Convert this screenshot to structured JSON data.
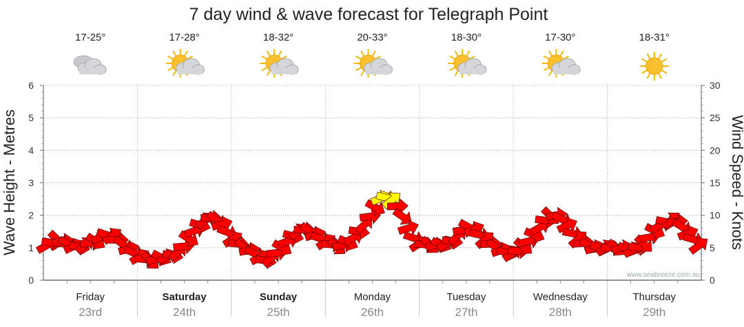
{
  "chart_data": {
    "type": "line",
    "title": "7 day wind & wave forecast for Telegraph Point",
    "ylabel_left": "Wave Height - Metres",
    "ylabel_right": "Wind Speed - Knots",
    "ylim_left": [
      0,
      6
    ],
    "ylim_right": [
      0,
      30
    ],
    "yticks_left": [
      "0",
      "1",
      "2",
      "3",
      "4",
      "5",
      "6"
    ],
    "yticks_right": [
      "0",
      "5",
      "10",
      "15",
      "20",
      "25",
      "30"
    ],
    "grid": true,
    "watermark": "www.seabreeze.com.au",
    "days": [
      {
        "name": "Friday",
        "date": "23rd",
        "temp": "17-25°",
        "icon": "cloudy-icon",
        "bold": false
      },
      {
        "name": "Saturday",
        "date": "24th",
        "temp": "17-28°",
        "icon": "partly-cloudy-icon",
        "bold": true
      },
      {
        "name": "Sunday",
        "date": "25th",
        "temp": "18-32°",
        "icon": "partly-cloudy-icon",
        "bold": true
      },
      {
        "name": "Monday",
        "date": "26th",
        "temp": "20-33°",
        "icon": "partly-cloudy-icon",
        "bold": false
      },
      {
        "name": "Tuesday",
        "date": "27th",
        "temp": "18-30°",
        "icon": "partly-cloudy-icon",
        "bold": false
      },
      {
        "name": "Wednesday",
        "date": "28th",
        "temp": "17-30°",
        "icon": "partly-cloudy-icon",
        "bold": false
      },
      {
        "name": "Thursday",
        "date": "29th",
        "temp": "18-31°",
        "icon": "sunny-icon",
        "bold": false
      }
    ],
    "series": [
      {
        "unit": "knots",
        "color_normal": "#ff0000",
        "color_strong": "#ffff00",
        "values": [
          5.3,
          5.8,
          6.3,
          6.0,
          5.6,
          5.2,
          5.1,
          5.4,
          5.7,
          6.0,
          6.6,
          7.0,
          6.8,
          6.2,
          5.5,
          4.8,
          4.2,
          3.6,
          3.2,
          3.0,
          3.2,
          3.5,
          3.6,
          3.8,
          4.3,
          5.2,
          6.4,
          7.6,
          8.5,
          9.2,
          9.6,
          9.3,
          8.6,
          7.4,
          6.3,
          5.6,
          5.1,
          4.6,
          4.1,
          3.5,
          3.0,
          3.4,
          4.2,
          5.0,
          6.0,
          6.8,
          7.5,
          7.8,
          7.6,
          7.0,
          6.4,
          5.9,
          5.5,
          5.2,
          5.4,
          5.8,
          6.5,
          7.5,
          8.5,
          9.8,
          11.2,
          12.6,
          12.7,
          12.3,
          11.4,
          9.8,
          8.0,
          6.5,
          5.6,
          5.5,
          5.4,
          5.4,
          5.5,
          5.6,
          6.0,
          6.8,
          7.7,
          8.2,
          7.8,
          7.0,
          6.2,
          5.6,
          5.1,
          4.6,
          4.2,
          4.1,
          4.5,
          5.2,
          6.0,
          7.0,
          8.1,
          9.2,
          9.9,
          10.0,
          9.4,
          8.4,
          7.2,
          6.3,
          5.7,
          5.3,
          5.0,
          5.0,
          5.0,
          5.0,
          5.0,
          5.0,
          4.8,
          4.7,
          5.0,
          5.6,
          6.6,
          7.6,
          8.4,
          9.0,
          9.2,
          9.0,
          8.2,
          7.2,
          6.3,
          5.3
        ]
      }
    ]
  }
}
